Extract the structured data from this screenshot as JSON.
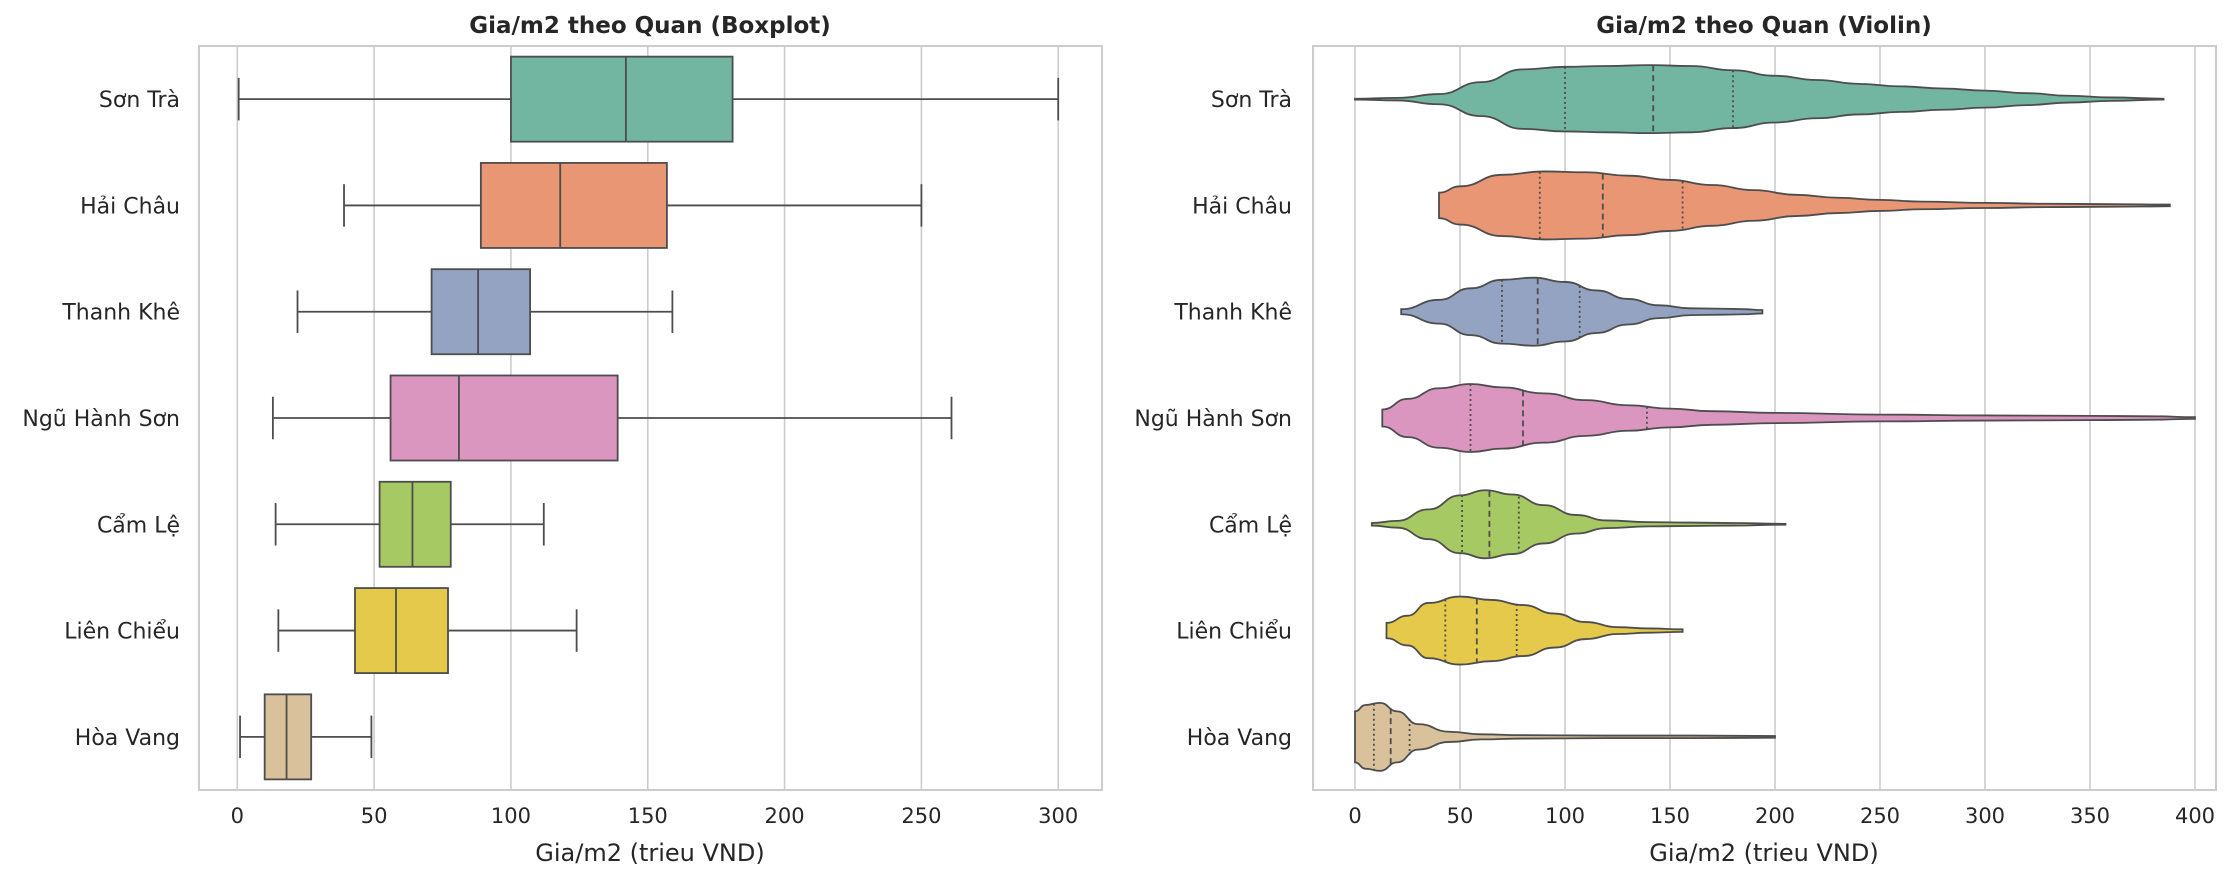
{
  "chart_data": [
    {
      "type": "boxplot",
      "title": "Gia/m2 theo Quan (Boxplot)",
      "xlabel": "Gia/m2 (trieu VND)",
      "ylabel": "",
      "xlim": [
        -14,
        316
      ],
      "xticks": [
        0,
        50,
        100,
        150,
        200,
        250,
        300
      ],
      "grid": true,
      "categories": [
        "Sơn Trà",
        "Hải Châu",
        "Thanh Khê",
        "Ngũ Hành Sơn",
        "Cẩm Lệ",
        "Liên Chiểu",
        "Hòa Vang"
      ],
      "colors": [
        "#72b6a1",
        "#e99675",
        "#95a3c3",
        "#db96c0",
        "#a6c964",
        "#e4c94a",
        "#d9c19b"
      ],
      "boxes": [
        {
          "whislo": 0.5,
          "q1": 100,
          "median": 142,
          "q3": 181,
          "whishi": 300
        },
        {
          "whislo": 39,
          "q1": 89,
          "median": 118,
          "q3": 157,
          "whishi": 250
        },
        {
          "whislo": 22,
          "q1": 71,
          "median": 88,
          "q3": 107,
          "whishi": 159
        },
        {
          "whislo": 13,
          "q1": 56,
          "median": 81,
          "q3": 139,
          "whishi": 261
        },
        {
          "whislo": 14,
          "q1": 52,
          "median": 64,
          "q3": 78,
          "whishi": 112
        },
        {
          "whislo": 15,
          "q1": 43,
          "median": 58,
          "q3": 77,
          "whishi": 124
        },
        {
          "whislo": 1,
          "q1": 10,
          "median": 18,
          "q3": 27,
          "whishi": 49
        }
      ]
    },
    {
      "type": "violin",
      "title": "Gia/m2 theo Quan (Violin)",
      "xlabel": "Gia/m2 (trieu VND)",
      "ylabel": "",
      "xlim": [
        -20,
        410
      ],
      "xticks": [
        0,
        50,
        100,
        150,
        200,
        250,
        300,
        350,
        400
      ],
      "grid": true,
      "categories": [
        "Sơn Trà",
        "Hải Châu",
        "Thanh Khê",
        "Ngũ Hành Sơn",
        "Cẩm Lệ",
        "Liên Chiểu",
        "Hòa Vang"
      ],
      "colors": [
        "#72b6a1",
        "#e99675",
        "#95a3c3",
        "#db96c0",
        "#a6c964",
        "#e4c94a",
        "#d9c19b"
      ],
      "violins": [
        {
          "density": [
            [
              0,
              0.01
            ],
            [
              20,
              0.03
            ],
            [
              40,
              0.12
            ],
            [
              60,
              0.4
            ],
            [
              80,
              0.7
            ],
            [
              100,
              0.76
            ],
            [
              120,
              0.78
            ],
            [
              140,
              0.8
            ],
            [
              160,
              0.78
            ],
            [
              180,
              0.68
            ],
            [
              200,
              0.55
            ],
            [
              220,
              0.45
            ],
            [
              240,
              0.36
            ],
            [
              260,
              0.3
            ],
            [
              280,
              0.25
            ],
            [
              300,
              0.2
            ],
            [
              320,
              0.14
            ],
            [
              340,
              0.08
            ],
            [
              360,
              0.04
            ],
            [
              385,
              0.01
            ]
          ],
          "q1": 100,
          "median": 142,
          "q3": 180
        },
        {
          "density": [
            [
              40,
              0.3
            ],
            [
              50,
              0.45
            ],
            [
              70,
              0.72
            ],
            [
              90,
              0.8
            ],
            [
              110,
              0.78
            ],
            [
              130,
              0.7
            ],
            [
              150,
              0.6
            ],
            [
              170,
              0.48
            ],
            [
              190,
              0.36
            ],
            [
              210,
              0.25
            ],
            [
              230,
              0.18
            ],
            [
              250,
              0.13
            ],
            [
              270,
              0.09
            ],
            [
              300,
              0.06
            ],
            [
              330,
              0.04
            ],
            [
              360,
              0.03
            ],
            [
              388,
              0.02
            ]
          ],
          "q1": 88,
          "median": 118,
          "q3": 156
        },
        {
          "density": [
            [
              22,
              0.06
            ],
            [
              40,
              0.28
            ],
            [
              55,
              0.55
            ],
            [
              70,
              0.75
            ],
            [
              85,
              0.8
            ],
            [
              100,
              0.7
            ],
            [
              115,
              0.5
            ],
            [
              130,
              0.3
            ],
            [
              145,
              0.15
            ],
            [
              160,
              0.08
            ],
            [
              175,
              0.07
            ],
            [
              185,
              0.06
            ],
            [
              194,
              0.04
            ]
          ],
          "q1": 70,
          "median": 87,
          "q3": 107
        },
        {
          "density": [
            [
              13,
              0.2
            ],
            [
              25,
              0.45
            ],
            [
              40,
              0.7
            ],
            [
              55,
              0.8
            ],
            [
              70,
              0.72
            ],
            [
              90,
              0.58
            ],
            [
              110,
              0.42
            ],
            [
              130,
              0.3
            ],
            [
              150,
              0.22
            ],
            [
              170,
              0.16
            ],
            [
              200,
              0.12
            ],
            [
              250,
              0.08
            ],
            [
              300,
              0.06
            ],
            [
              350,
              0.05
            ],
            [
              380,
              0.04
            ],
            [
              400,
              0.02
            ]
          ],
          "q1": 55,
          "median": 80,
          "q3": 139
        },
        {
          "density": [
            [
              8,
              0.03
            ],
            [
              20,
              0.08
            ],
            [
              35,
              0.35
            ],
            [
              50,
              0.68
            ],
            [
              62,
              0.8
            ],
            [
              75,
              0.7
            ],
            [
              90,
              0.45
            ],
            [
              105,
              0.22
            ],
            [
              120,
              0.09
            ],
            [
              140,
              0.05
            ],
            [
              160,
              0.04
            ],
            [
              180,
              0.03
            ],
            [
              205,
              0.01
            ]
          ],
          "q1": 51,
          "median": 64,
          "q3": 78
        },
        {
          "density": [
            [
              15,
              0.18
            ],
            [
              25,
              0.35
            ],
            [
              35,
              0.65
            ],
            [
              50,
              0.8
            ],
            [
              65,
              0.72
            ],
            [
              80,
              0.6
            ],
            [
              95,
              0.4
            ],
            [
              110,
              0.2
            ],
            [
              125,
              0.08
            ],
            [
              140,
              0.05
            ],
            [
              156,
              0.03
            ]
          ],
          "q1": 43,
          "median": 58,
          "q3": 77
        },
        {
          "density": [
            [
              0,
              0.6
            ],
            [
              5,
              0.75
            ],
            [
              12,
              0.8
            ],
            [
              20,
              0.6
            ],
            [
              30,
              0.3
            ],
            [
              45,
              0.12
            ],
            [
              60,
              0.06
            ],
            [
              80,
              0.04
            ],
            [
              120,
              0.03
            ],
            [
              160,
              0.03
            ],
            [
              200,
              0.02
            ]
          ],
          "q1": 9,
          "median": 17,
          "q3": 26
        }
      ]
    }
  ]
}
